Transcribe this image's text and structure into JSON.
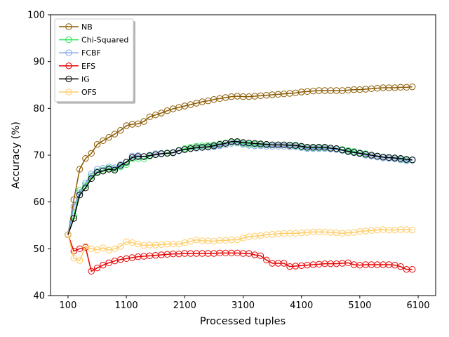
{
  "chart_data": {
    "type": "line",
    "xlabel": "Processed tuples",
    "ylabel": "Accuracy (%)",
    "xlim": [
      -200,
      6400
    ],
    "ylim": [
      40,
      100
    ],
    "xticks": [
      100,
      1100,
      2100,
      3100,
      4100,
      5100,
      6100
    ],
    "yticks": [
      40,
      50,
      60,
      70,
      80,
      90,
      100
    ],
    "grid": false,
    "legend_position": "top-left",
    "x": [
      100,
      200,
      300,
      400,
      500,
      600,
      700,
      800,
      900,
      1000,
      1100,
      1200,
      1300,
      1400,
      1500,
      1600,
      1700,
      1800,
      1900,
      2000,
      2100,
      2200,
      2300,
      2400,
      2500,
      2600,
      2700,
      2800,
      2900,
      3000,
      3100,
      3200,
      3300,
      3400,
      3500,
      3600,
      3700,
      3800,
      3900,
      4000,
      4100,
      4200,
      4300,
      4400,
      4500,
      4600,
      4700,
      4800,
      4900,
      5000,
      5100,
      5200,
      5300,
      5400,
      5500,
      5600,
      5700,
      5800,
      5900,
      6000
    ],
    "series": [
      {
        "name": "NB",
        "color": "#8B5A00",
        "values": [
          53,
          60.5,
          67,
          69.3,
          70.4,
          72.3,
          73.1,
          73.8,
          74.5,
          75.3,
          76.3,
          76.6,
          76.7,
          77.2,
          78.2,
          78.6,
          79,
          79.5,
          79.9,
          80.2,
          80.5,
          80.8,
          81.1,
          81.4,
          81.6,
          81.9,
          82.1,
          82.3,
          82.5,
          82.6,
          82.5,
          82.5,
          82.6,
          82.7,
          82.8,
          82.9,
          83,
          83.1,
          83.2,
          83.3,
          83.5,
          83.6,
          83.7,
          83.8,
          83.8,
          83.8,
          83.8,
          83.8,
          83.9,
          84,
          84,
          84.1,
          84.2,
          84.3,
          84.4,
          84.4,
          84.4,
          84.5,
          84.5,
          84.6
        ]
      },
      {
        "name": "Chi-Squared",
        "color": "#2EE65A",
        "values": [
          53,
          57,
          62.5,
          63.5,
          65.5,
          66.5,
          66.8,
          67.2,
          67,
          67.5,
          68,
          69.2,
          69.3,
          69.2,
          69.8,
          70.1,
          70.3,
          70.5,
          70.6,
          71,
          71.4,
          71.7,
          71.9,
          72,
          72.1,
          72.2,
          72.4,
          72.6,
          72.8,
          72.8,
          72.5,
          72.4,
          72.3,
          72.3,
          72.2,
          72.2,
          72.2,
          72.2,
          72.2,
          72,
          71.8,
          71.6,
          71.6,
          71.6,
          71.6,
          71.5,
          71.4,
          71.2,
          71,
          70.8,
          70.5,
          70.3,
          70,
          69.8,
          69.6,
          69.5,
          69.4,
          69.2,
          69,
          69
        ]
      },
      {
        "name": "FCBF",
        "color": "#7EA3E6",
        "values": [
          53,
          59,
          62,
          64,
          66,
          67,
          67.2,
          67.5,
          67.3,
          68,
          68.5,
          69.8,
          69.9,
          69.7,
          70,
          70.3,
          70.4,
          70.4,
          70.6,
          70.9,
          71.2,
          71.4,
          71.5,
          71.6,
          71.7,
          71.8,
          72,
          72.2,
          72.5,
          72.6,
          72.3,
          72.1,
          72,
          72,
          71.9,
          71.9,
          71.9,
          71.9,
          71.8,
          71.8,
          71.6,
          71.4,
          71.4,
          71.4,
          71.4,
          71.3,
          71.2,
          71,
          70.7,
          70.5,
          70.3,
          70,
          69.8,
          69.6,
          69.4,
          69.3,
          69.2,
          69,
          68.8,
          68.9
        ]
      },
      {
        "name": "EFS",
        "color": "#E60000",
        "values": [
          53,
          49.5,
          50,
          50.3,
          45.2,
          45.9,
          46.5,
          47,
          47.4,
          47.7,
          47.9,
          48.1,
          48.3,
          48.4,
          48.5,
          48.6,
          48.7,
          48.8,
          48.9,
          48.9,
          49,
          49,
          49,
          49,
          49,
          49,
          49.1,
          49.1,
          49.1,
          49.1,
          49,
          49,
          48.7,
          48.5,
          47.6,
          46.9,
          46.9,
          46.9,
          46.2,
          46.3,
          46.4,
          46.5,
          46.6,
          46.7,
          46.8,
          46.8,
          46.8,
          46.9,
          47,
          46.6,
          46.5,
          46.6,
          46.6,
          46.6,
          46.6,
          46.6,
          46.5,
          46.2,
          45.6,
          45.6
        ]
      },
      {
        "name": "IG",
        "color": "#000000",
        "values": [
          53,
          56.5,
          61.5,
          63,
          65,
          66.3,
          66.6,
          67,
          66.8,
          67.8,
          68.5,
          69.5,
          69.7,
          69.7,
          69.9,
          70.1,
          70.3,
          70.4,
          70.5,
          71,
          71.2,
          71.4,
          71.6,
          71.7,
          71.8,
          72,
          72.3,
          72.5,
          72.9,
          72.9,
          72.7,
          72.6,
          72.5,
          72.4,
          72.3,
          72.2,
          72.2,
          72.2,
          72.1,
          72.1,
          71.9,
          71.7,
          71.7,
          71.7,
          71.7,
          71.5,
          71.4,
          71.1,
          70.8,
          70.6,
          70.4,
          70.2,
          70,
          69.8,
          69.6,
          69.5,
          69.4,
          69.3,
          69.1,
          69
        ]
      },
      {
        "name": "OFS",
        "color": "#FFCC66",
        "values": [
          53,
          48,
          47.5,
          50.5,
          50,
          49.8,
          50.2,
          49.7,
          50,
          50.5,
          51.5,
          51.3,
          51,
          50.7,
          50.8,
          50.8,
          50.9,
          51,
          51,
          51,
          51.3,
          51.6,
          51.9,
          51.7,
          51.7,
          51.6,
          51.8,
          51.8,
          51.9,
          51.9,
          52.3,
          52.6,
          52.7,
          52.8,
          53,
          53.1,
          53.2,
          53.3,
          53.3,
          53.3,
          53.4,
          53.5,
          53.6,
          53.6,
          53.6,
          53.5,
          53.4,
          53.3,
          53.4,
          53.5,
          53.7,
          53.8,
          53.9,
          54,
          54.1,
          54,
          54,
          54.1,
          54.1,
          54
        ]
      }
    ]
  }
}
